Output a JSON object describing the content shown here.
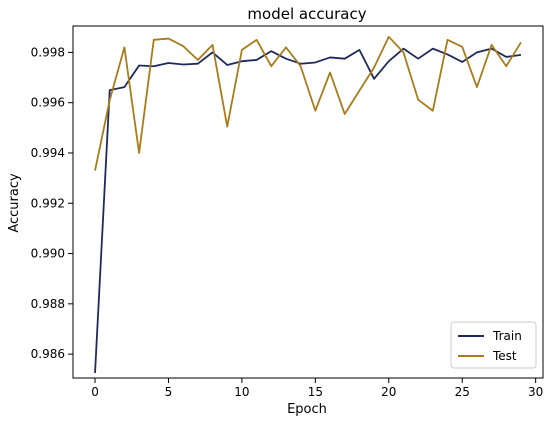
{
  "chart_data": {
    "type": "line",
    "title": "model accuracy",
    "xlabel": "Epoch",
    "ylabel": "Accuracy",
    "xlim": [
      -1.5,
      30.5
    ],
    "ylim": [
      0.98505,
      0.99905
    ],
    "x_ticks": [
      0,
      5,
      10,
      15,
      20,
      25,
      30
    ],
    "y_ticks": [
      0.986,
      0.988,
      0.99,
      0.992,
      0.994,
      0.996,
      0.998
    ],
    "x_tick_labels": [
      "0",
      "5",
      "10",
      "15",
      "20",
      "25",
      "30"
    ],
    "y_tick_labels": [
      "0.986",
      "0.988",
      "0.990",
      "0.992",
      "0.994",
      "0.996",
      "0.998"
    ],
    "legend_position": "bottom-right",
    "grid": false,
    "x": [
      0,
      1,
      2,
      3,
      4,
      5,
      6,
      7,
      8,
      9,
      10,
      11,
      12,
      13,
      14,
      15,
      16,
      17,
      18,
      19,
      20,
      21,
      22,
      23,
      24,
      25,
      26,
      27,
      28,
      29
    ],
    "series": [
      {
        "name": "Train",
        "color": "#1f2a5c",
        "values": [
          0.98525,
          0.9965,
          0.99662,
          0.99748,
          0.99745,
          0.99758,
          0.99752,
          0.99755,
          0.998,
          0.9975,
          0.99765,
          0.9977,
          0.99805,
          0.99775,
          0.99755,
          0.9976,
          0.9978,
          0.99775,
          0.9981,
          0.99695,
          0.99765,
          0.99815,
          0.99775,
          0.99815,
          0.99792,
          0.99762,
          0.998,
          0.99815,
          0.99782,
          0.9979
        ]
      },
      {
        "name": "Test",
        "color": "#a87c1a",
        "values": [
          0.9933,
          0.9961,
          0.9982,
          0.994,
          0.9985,
          0.99855,
          0.99825,
          0.9977,
          0.9983,
          0.99505,
          0.9981,
          0.9985,
          0.99745,
          0.9982,
          0.99745,
          0.99568,
          0.9972,
          0.99555,
          0.99648,
          0.9974,
          0.99862,
          0.998,
          0.99612,
          0.99568,
          0.9985,
          0.99822,
          0.99662,
          0.9983,
          0.99745,
          0.9984
        ]
      }
    ]
  }
}
